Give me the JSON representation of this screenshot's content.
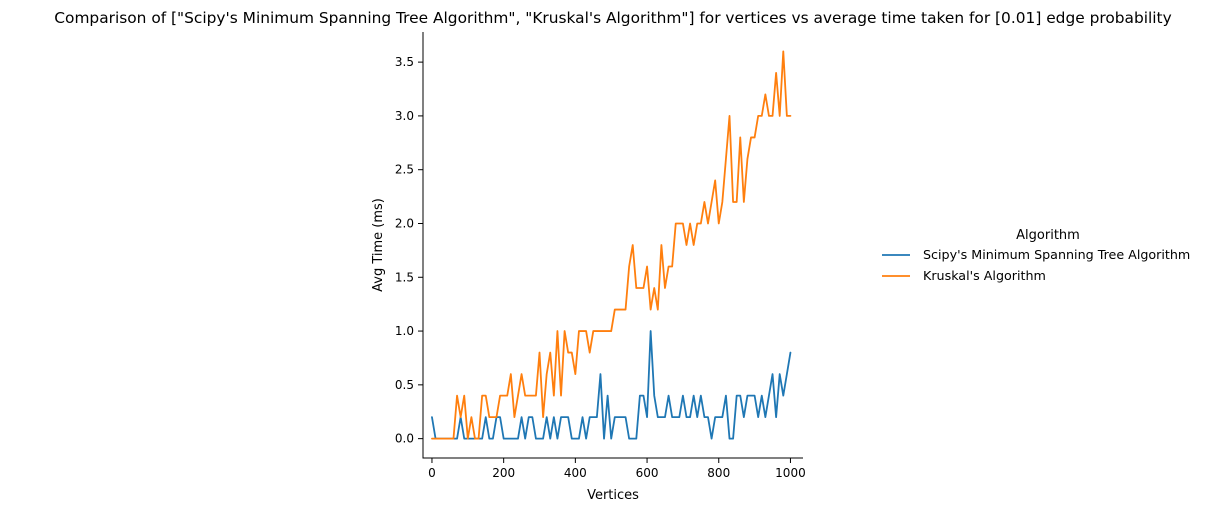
{
  "chart_data": {
    "type": "line",
    "title": "Comparison of [\"Scipy's Minimum Spanning Tree Algorithm\", \"Kruskal's Algorithm\"] for vertices vs average time taken for [0.01] edge probability",
    "xlabel": "Vertices",
    "ylabel": "Avg Time (ms)",
    "xlim": [
      -25,
      1035
    ],
    "ylim": [
      -0.18,
      3.78
    ],
    "x_ticks": [
      0,
      200,
      400,
      600,
      800,
      1000
    ],
    "y_ticks": [
      0.0,
      0.5,
      1.0,
      1.5,
      2.0,
      2.5,
      3.0,
      3.5
    ],
    "x_tick_labels": [
      "0",
      "200",
      "400",
      "600",
      "800",
      "1000"
    ],
    "y_tick_labels": [
      "0.0",
      "0.5",
      "1.0",
      "1.5",
      "2.0",
      "2.5",
      "3.0",
      "3.5"
    ],
    "legend": {
      "title": "Algorithm",
      "position": "right-outside"
    },
    "x": [
      0,
      10,
      20,
      30,
      40,
      50,
      60,
      70,
      80,
      90,
      100,
      110,
      120,
      130,
      140,
      150,
      160,
      170,
      180,
      190,
      200,
      210,
      220,
      230,
      240,
      250,
      260,
      270,
      280,
      290,
      300,
      310,
      320,
      330,
      340,
      350,
      360,
      370,
      380,
      390,
      400,
      410,
      420,
      430,
      440,
      450,
      460,
      470,
      480,
      490,
      500,
      510,
      520,
      530,
      540,
      550,
      560,
      570,
      580,
      590,
      600,
      610,
      620,
      630,
      640,
      650,
      660,
      670,
      680,
      690,
      700,
      710,
      720,
      730,
      740,
      750,
      760,
      770,
      780,
      790,
      800,
      810,
      820,
      830,
      840,
      850,
      860,
      870,
      880,
      890,
      900,
      910,
      920,
      930,
      940,
      950,
      960,
      970,
      980,
      990,
      1000
    ],
    "series": [
      {
        "name": "Scipy's Minimum Spanning Tree Algorithm",
        "color": "#1f77b4",
        "values": [
          0.2,
          0.0,
          0.0,
          0.0,
          0.0,
          0.0,
          0.0,
          0.0,
          0.2,
          0.0,
          0.0,
          0.0,
          0.0,
          0.0,
          0.0,
          0.2,
          0.0,
          0.0,
          0.2,
          0.2,
          0.0,
          0.0,
          0.0,
          0.0,
          0.0,
          0.2,
          0.0,
          0.2,
          0.2,
          0.0,
          0.0,
          0.0,
          0.2,
          0.0,
          0.2,
          0.0,
          0.2,
          0.2,
          0.2,
          0.0,
          0.0,
          0.0,
          0.2,
          0.0,
          0.2,
          0.2,
          0.2,
          0.6,
          0.0,
          0.4,
          0.0,
          0.2,
          0.2,
          0.2,
          0.2,
          0.0,
          0.0,
          0.0,
          0.4,
          0.4,
          0.2,
          1.0,
          0.4,
          0.2,
          0.2,
          0.2,
          0.4,
          0.2,
          0.2,
          0.2,
          0.4,
          0.2,
          0.2,
          0.4,
          0.2,
          0.4,
          0.2,
          0.2,
          0.0,
          0.2,
          0.2,
          0.2,
          0.4,
          0.0,
          0.0,
          0.4,
          0.4,
          0.2,
          0.4,
          0.4,
          0.4,
          0.2,
          0.4,
          0.2,
          0.4,
          0.6,
          0.2,
          0.6,
          0.4,
          0.6,
          0.8
        ]
      },
      {
        "name": "Kruskal's Algorithm",
        "color": "#ff7f0e",
        "values": [
          0.0,
          0.0,
          0.0,
          0.0,
          0.0,
          0.0,
          0.0,
          0.4,
          0.2,
          0.4,
          0.0,
          0.2,
          0.0,
          0.0,
          0.4,
          0.4,
          0.2,
          0.2,
          0.2,
          0.4,
          0.4,
          0.4,
          0.6,
          0.2,
          0.4,
          0.6,
          0.4,
          0.4,
          0.4,
          0.4,
          0.8,
          0.2,
          0.6,
          0.8,
          0.4,
          1.0,
          0.4,
          1.0,
          0.8,
          0.8,
          0.6,
          1.0,
          1.0,
          1.0,
          0.8,
          1.0,
          1.0,
          1.0,
          1.0,
          1.0,
          1.0,
          1.2,
          1.2,
          1.2,
          1.2,
          1.6,
          1.8,
          1.4,
          1.4,
          1.4,
          1.6,
          1.2,
          1.4,
          1.2,
          1.8,
          1.4,
          1.6,
          1.6,
          2.0,
          2.0,
          2.0,
          1.8,
          2.0,
          1.8,
          2.0,
          2.0,
          2.2,
          2.0,
          2.2,
          2.4,
          2.0,
          2.2,
          2.6,
          3.0,
          2.2,
          2.2,
          2.8,
          2.2,
          2.6,
          2.8,
          2.8,
          3.0,
          3.0,
          3.2,
          3.0,
          3.0,
          3.4,
          3.0,
          3.6,
          3.0,
          3.0
        ]
      }
    ]
  }
}
